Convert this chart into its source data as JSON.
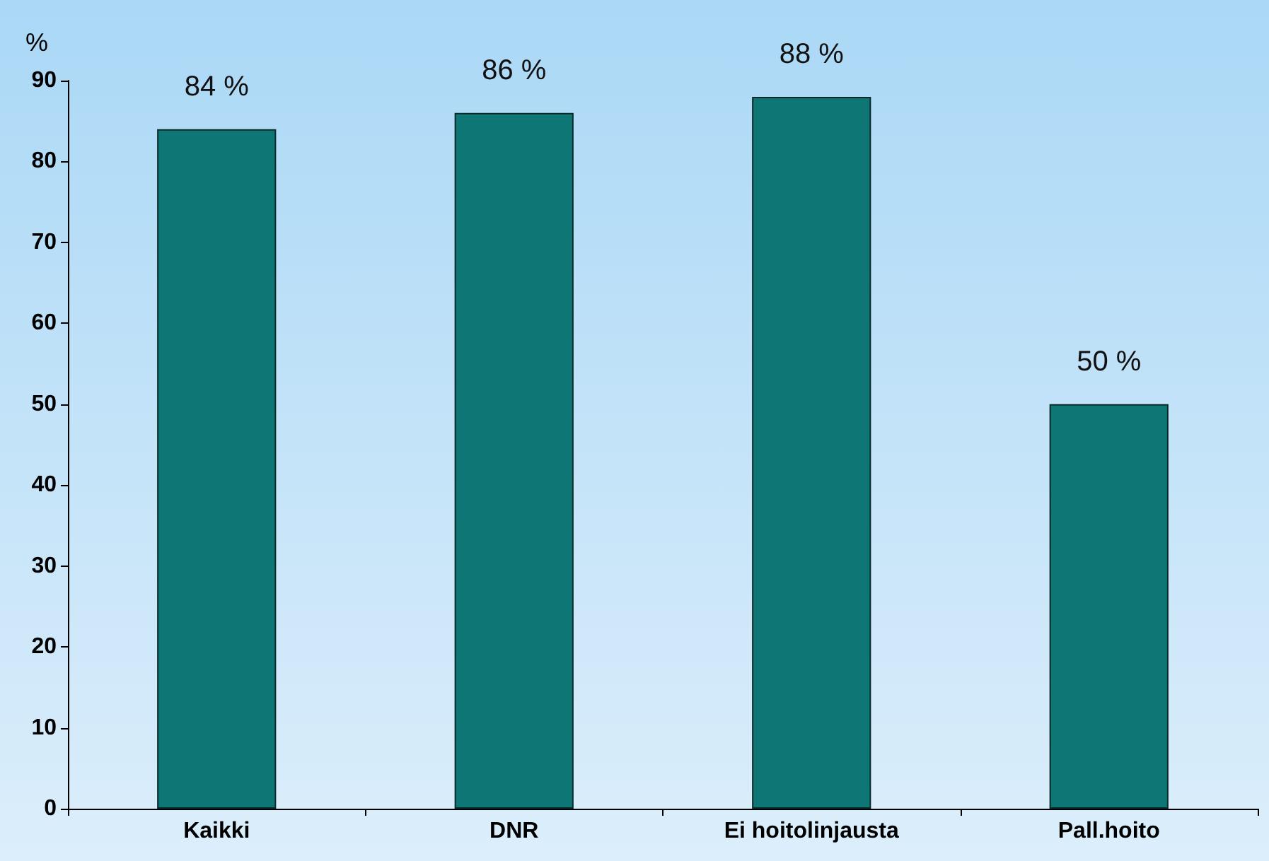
{
  "chart_data": {
    "type": "bar",
    "ylabel": "%",
    "categories": [
      "Kaikki",
      "DNR",
      "Ei hoitolinjausta",
      "Pall.hoito"
    ],
    "values": [
      84,
      86,
      88,
      50
    ],
    "color": "#0e7775",
    "value_labels": [
      "84 %",
      "86 %",
      "88 %",
      "50 %"
    ],
    "ylim": [
      0,
      90
    ],
    "yticks": [
      0,
      10,
      20,
      30,
      40,
      50,
      60,
      70,
      80,
      90
    ],
    "grid": false
  }
}
